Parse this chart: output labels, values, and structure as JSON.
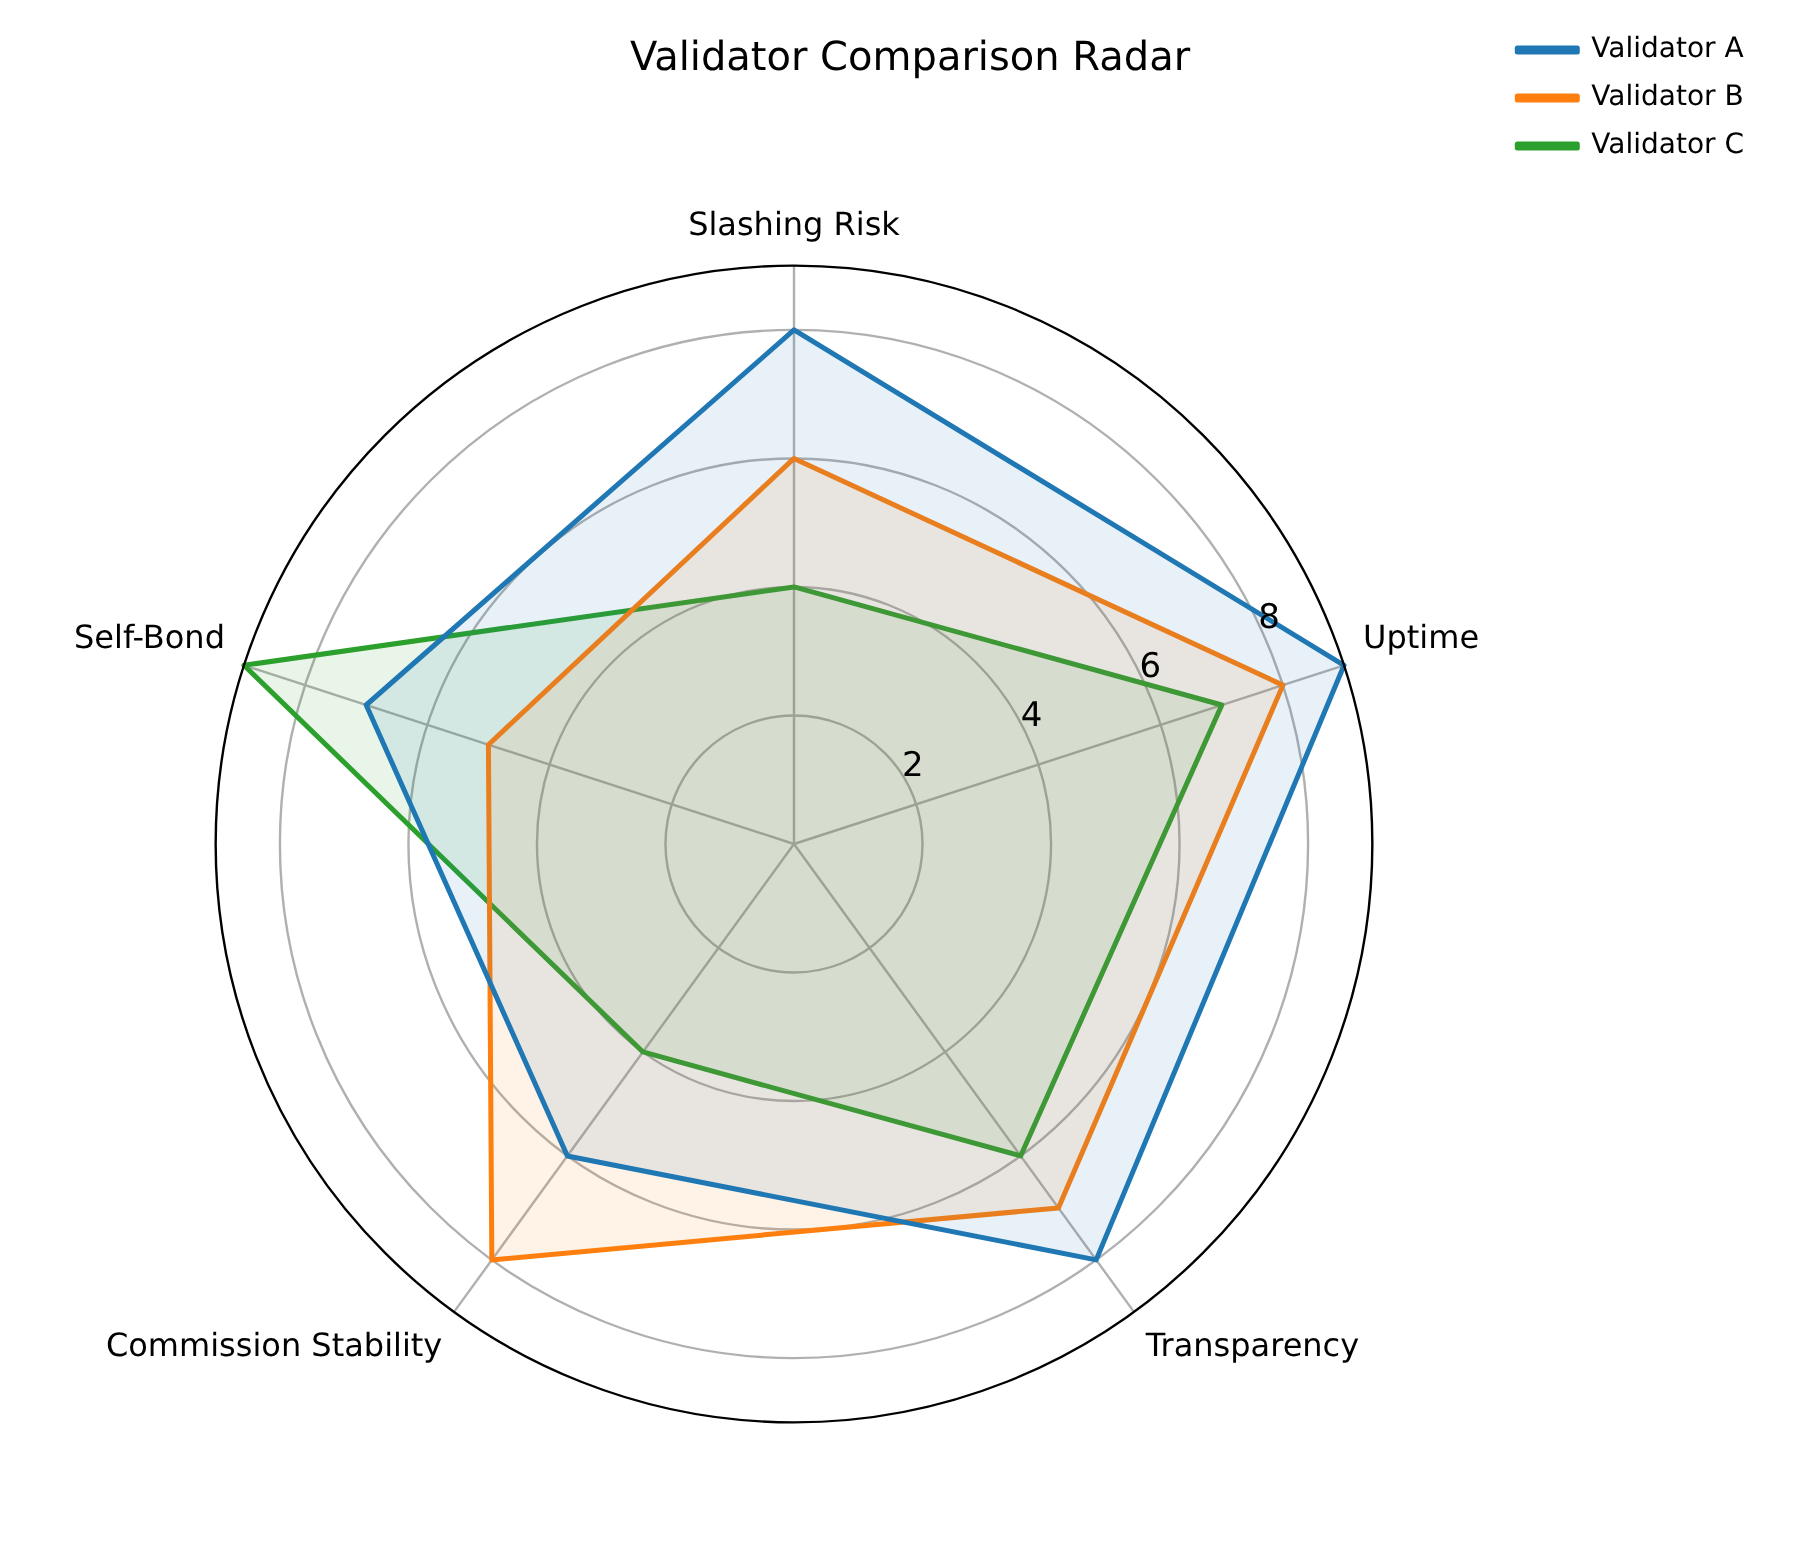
{
  "chart_data": {
    "type": "radar",
    "title": "Validator Comparison Radar",
    "categories": [
      "Slashing Risk",
      "Uptime",
      "Transparency",
      "Commission Stability",
      "Self-Bond"
    ],
    "series": [
      {
        "name": "Validator A",
        "color": "#1f77b4",
        "values": [
          8,
          9,
          8,
          6,
          7
        ]
      },
      {
        "name": "Validator B",
        "color": "#ff7f0e",
        "values": [
          6,
          8,
          7,
          8,
          5
        ]
      },
      {
        "name": "Validator C",
        "color": "#2ca02c",
        "values": [
          4,
          7,
          6,
          4,
          9
        ]
      }
    ],
    "ylim": [
      0,
      9
    ],
    "yticks": [
      2,
      4,
      6,
      8
    ],
    "grid": true,
    "legend": "top right",
    "marker": "none",
    "line_style": "solid"
  }
}
